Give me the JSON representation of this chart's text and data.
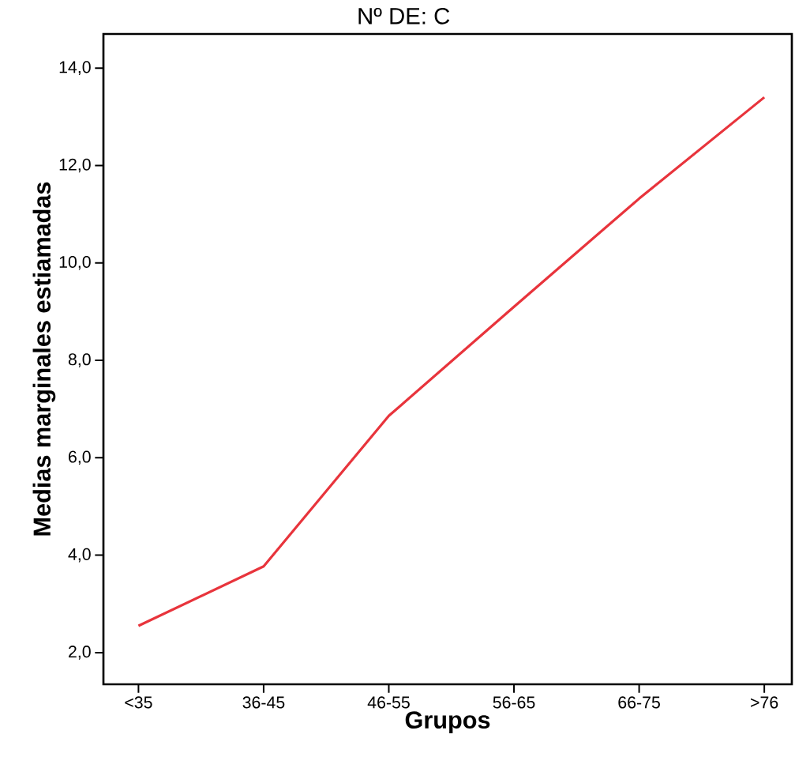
{
  "chart_data": {
    "type": "line",
    "title": "Nº DE: C",
    "xlabel": "Grupos",
    "ylabel": "Medias marginales estiamadas",
    "categories": [
      "<35",
      "36-45",
      "46-55",
      "56-65",
      "66-75",
      ">76"
    ],
    "series": [
      {
        "color": "#e8343c",
        "values": [
          2.55,
          3.77,
          6.86,
          9.1,
          11.32,
          13.4
        ]
      }
    ],
    "ylim": [
      1.35,
      14.7
    ],
    "yticks": [
      {
        "value": 2,
        "label": "2,0"
      },
      {
        "value": 4,
        "label": "4,0"
      },
      {
        "value": 6,
        "label": "6,0"
      },
      {
        "value": 8,
        "label": "8,0"
      },
      {
        "value": 10,
        "label": "10,0"
      },
      {
        "value": 12,
        "label": "12,0"
      },
      {
        "value": 14,
        "label": "14,0"
      }
    ]
  }
}
